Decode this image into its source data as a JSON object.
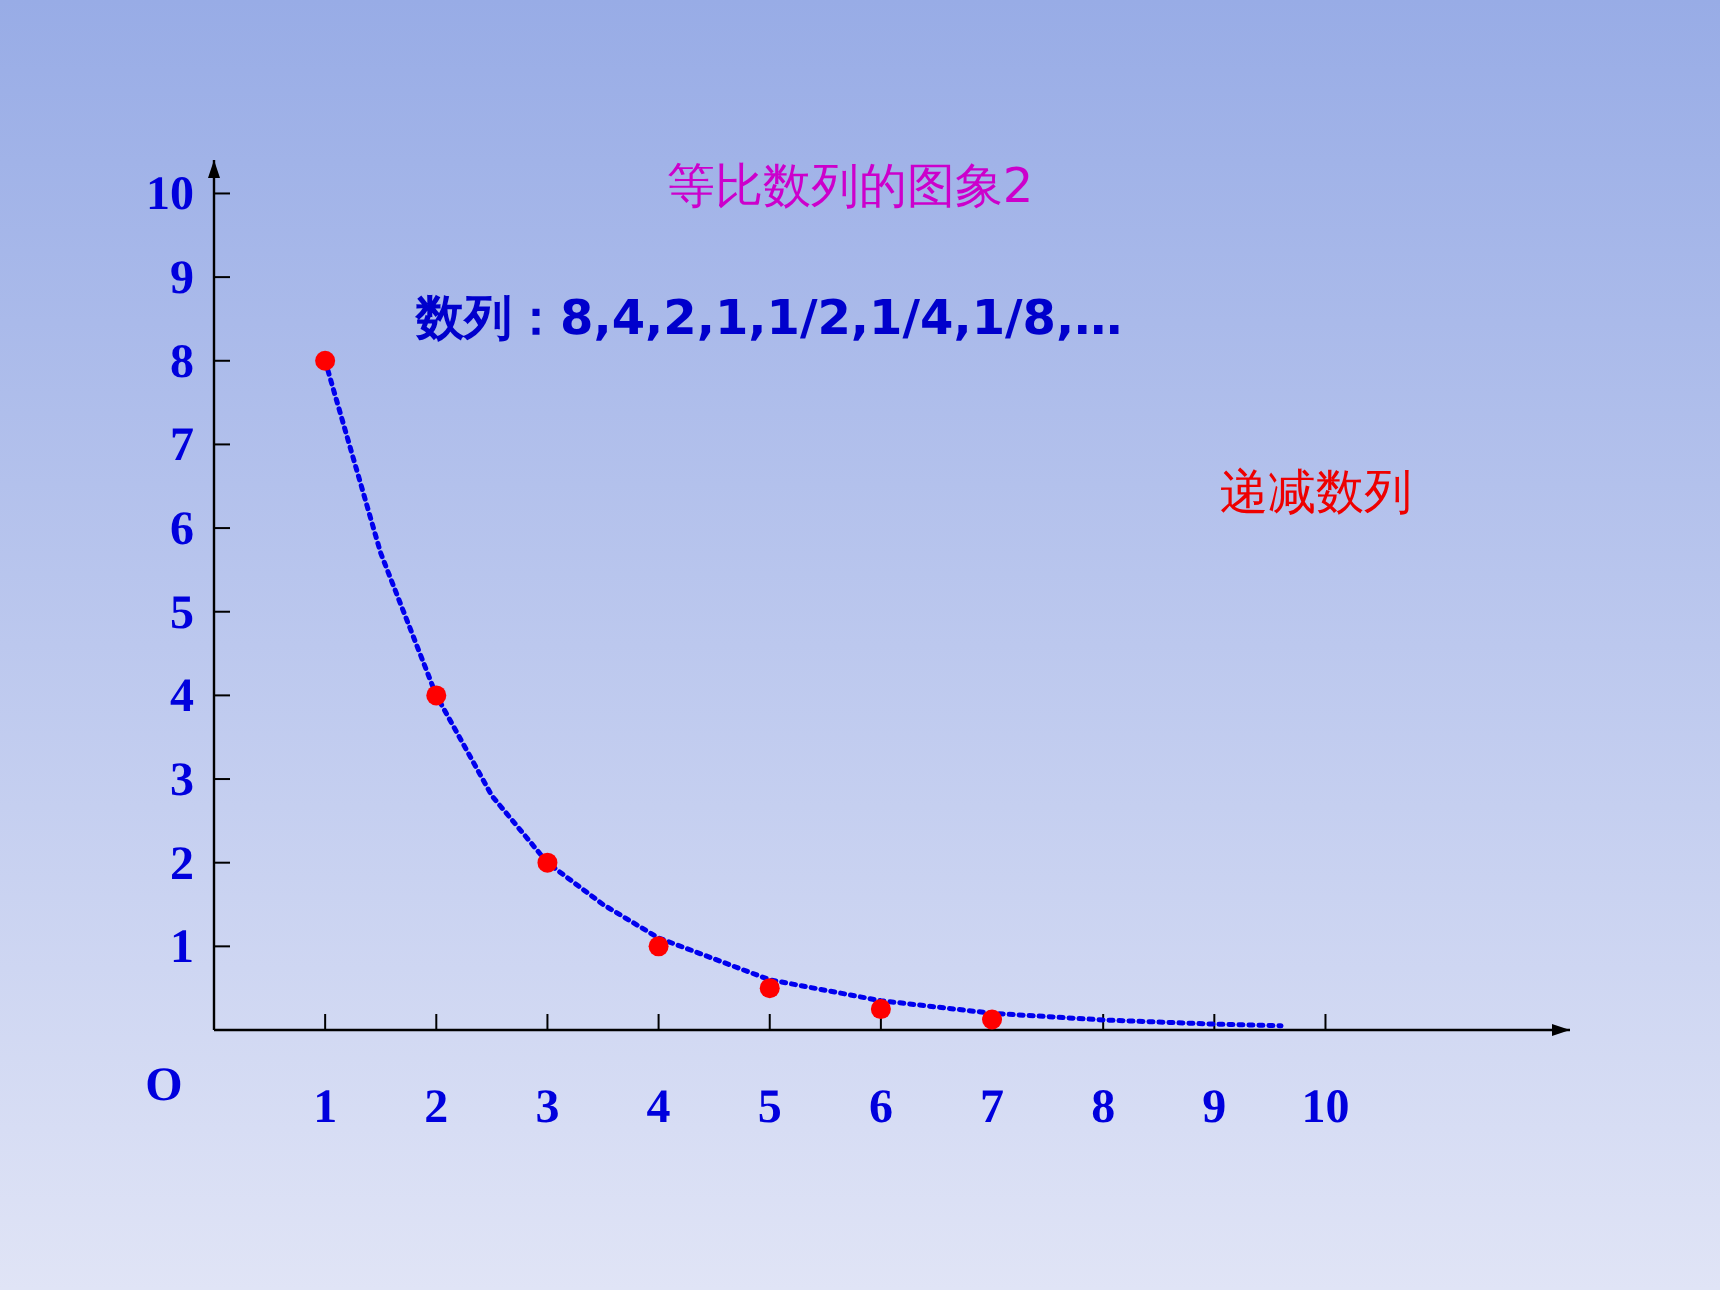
{
  "chart_data": {
    "type": "scatter",
    "title": "等比数列的图象2",
    "annotations": [
      "数列：8,4,2,1,1/2,1/4,1/8,…",
      "递减数列",
      "O"
    ],
    "series": [
      {
        "color": "#ff0000",
        "marker": "circle",
        "x": [
          1,
          2,
          3,
          4,
          5,
          6,
          7
        ],
        "values": [
          8,
          4,
          2,
          1,
          0.5,
          0.25,
          0.125
        ]
      },
      {
        "type": "line",
        "color": "#0000ee",
        "marker": "none",
        "line_style": "dotted",
        "x": [
          1,
          1.5,
          2,
          2.5,
          3,
          3.5,
          4,
          5,
          6,
          7,
          8,
          9,
          9.6
        ],
        "values": [
          8,
          5.7,
          4,
          2.8,
          2,
          1.5,
          1.1,
          0.6,
          0.35,
          0.2,
          0.12,
          0.07,
          0.05
        ]
      }
    ],
    "xlim": [
      0,
      12.2
    ],
    "ylim": [
      0,
      10.4
    ],
    "xticks": [
      1,
      2,
      3,
      4,
      5,
      6,
      7,
      8,
      9,
      10
    ],
    "yticks": [
      1,
      2,
      3,
      4,
      5,
      6,
      7,
      8,
      9,
      10
    ],
    "grid": false
  }
}
